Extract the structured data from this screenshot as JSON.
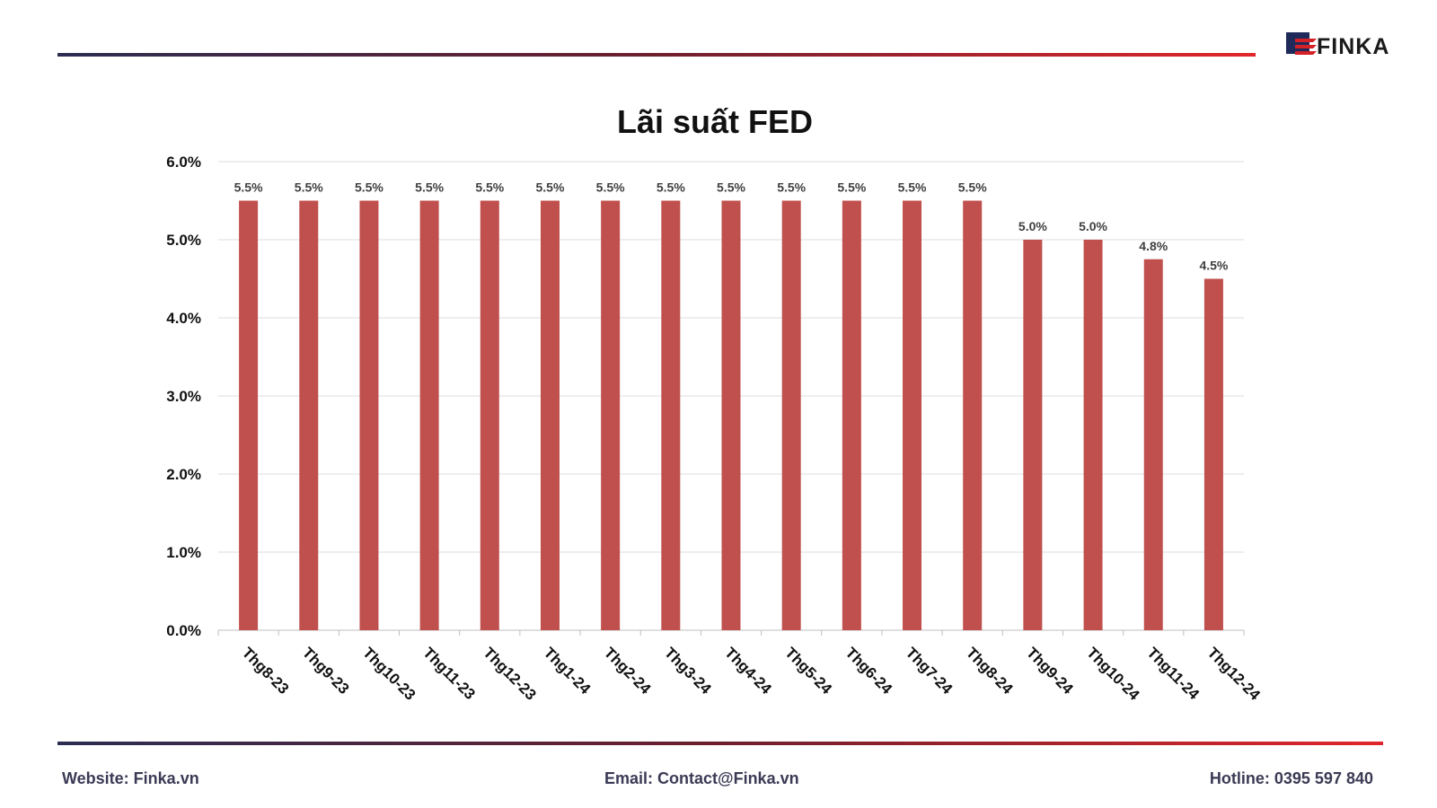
{
  "brand": {
    "name": "FINKA",
    "logo_color": "#1f2a5a",
    "accent_color": "#d42027"
  },
  "rules": {
    "gradient_start": "#2b2d52",
    "gradient_end": "#e0262b"
  },
  "footer": {
    "website": "Website: Finka.vn",
    "email": "Email: Contact@Finka.vn",
    "hotline": "Hotline: 0395 597 840"
  },
  "chart_data": {
    "type": "bar",
    "title": "Lãi suất FED",
    "xlabel": "",
    "ylabel": "",
    "categories": [
      "Thg8-23",
      "Thg9-23",
      "Thg10-23",
      "Thg11-23",
      "Thg12-23",
      "Thg1-24",
      "Thg2-24",
      "Thg3-24",
      "Thg4-24",
      "Thg5-24",
      "Thg6-24",
      "Thg7-24",
      "Thg8-24",
      "Thg9-24",
      "Thg10-24",
      "Thg11-24",
      "Thg12-24"
    ],
    "values": [
      5.5,
      5.5,
      5.5,
      5.5,
      5.5,
      5.5,
      5.5,
      5.5,
      5.5,
      5.5,
      5.5,
      5.5,
      5.5,
      5.0,
      5.0,
      4.75,
      4.5
    ],
    "data_labels": [
      "5.5%",
      "5.5%",
      "5.5%",
      "5.5%",
      "5.5%",
      "5.5%",
      "5.5%",
      "5.5%",
      "5.5%",
      "5.5%",
      "5.5%",
      "5.5%",
      "5.5%",
      "5.0%",
      "5.0%",
      "4.8%",
      "4.5%"
    ],
    "ylim": [
      0,
      6
    ],
    "yticks": [
      "0.0%",
      "1.0%",
      "2.0%",
      "3.0%",
      "4.0%",
      "5.0%",
      "6.0%"
    ],
    "grid": true,
    "bar_color": "#c0504d",
    "legend": "none"
  }
}
